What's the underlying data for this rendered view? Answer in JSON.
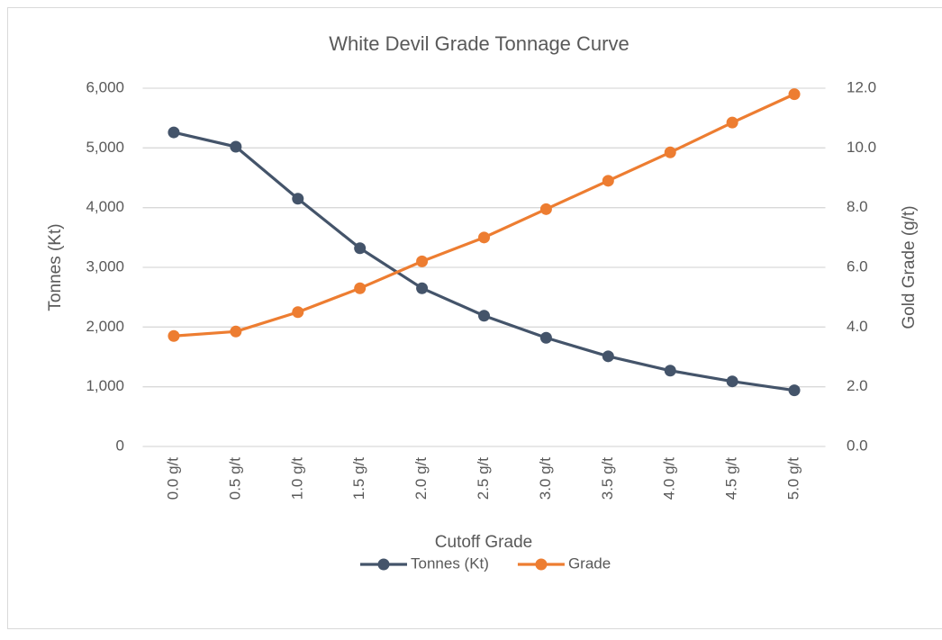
{
  "chart_data": {
    "type": "line",
    "title": "White Devil Grade Tonnage Curve",
    "x_label": "Cutoff Grade",
    "y_label": "Tonnes (Kt)",
    "y2_label": "Gold Grade (g/t)",
    "categories": [
      "0.0 g/t",
      "0.5 g/t",
      "1.0 g/t",
      "1.5 g/t",
      "2.0 g/t",
      "2.5 g/t",
      "3.0 g/t",
      "3.5 g/t",
      "4.0 g/t",
      "4.5 g/t",
      "5.0 g/t"
    ],
    "series": [
      {
        "name": "Tonnes (Kt)",
        "color": "#44546a",
        "values": [
          5260,
          5020,
          4150,
          3320,
          2650,
          2190,
          1820,
          1510,
          1270,
          1090,
          940
        ]
      },
      {
        "name": "Grade",
        "color": "#ed7d31",
        "axis": "y2",
        "values": [
          3.7,
          3.85,
          4.5,
          5.3,
          6.2,
          7.0,
          7.95,
          8.9,
          9.85,
          10.85,
          11.8
        ]
      }
    ],
    "ylim": [
      0,
      6000
    ],
    "yticks": [
      0,
      {
        "value": 1000,
        "label": "1,000"
      },
      {
        "value": 2000,
        "label": "2,000"
      },
      {
        "value": 3000,
        "label": "3,000"
      },
      {
        "value": 4000,
        "label": "4,000"
      },
      {
        "value": 5000,
        "label": "5,000"
      },
      {
        "value": 6000,
        "label": "6,000"
      }
    ],
    "y2lim": [
      0,
      12
    ],
    "y2ticks": [
      {
        "value": 0,
        "label": "0.0"
      },
      {
        "value": 2,
        "label": "2.0"
      },
      {
        "value": 4,
        "label": "4.0"
      },
      {
        "value": 6,
        "label": "6.0"
      },
      {
        "value": 8,
        "label": "8.0"
      },
      {
        "value": 10,
        "label": "10.0"
      },
      {
        "value": 12,
        "label": "12.0"
      }
    ],
    "grid": true,
    "legend": "bottom"
  }
}
